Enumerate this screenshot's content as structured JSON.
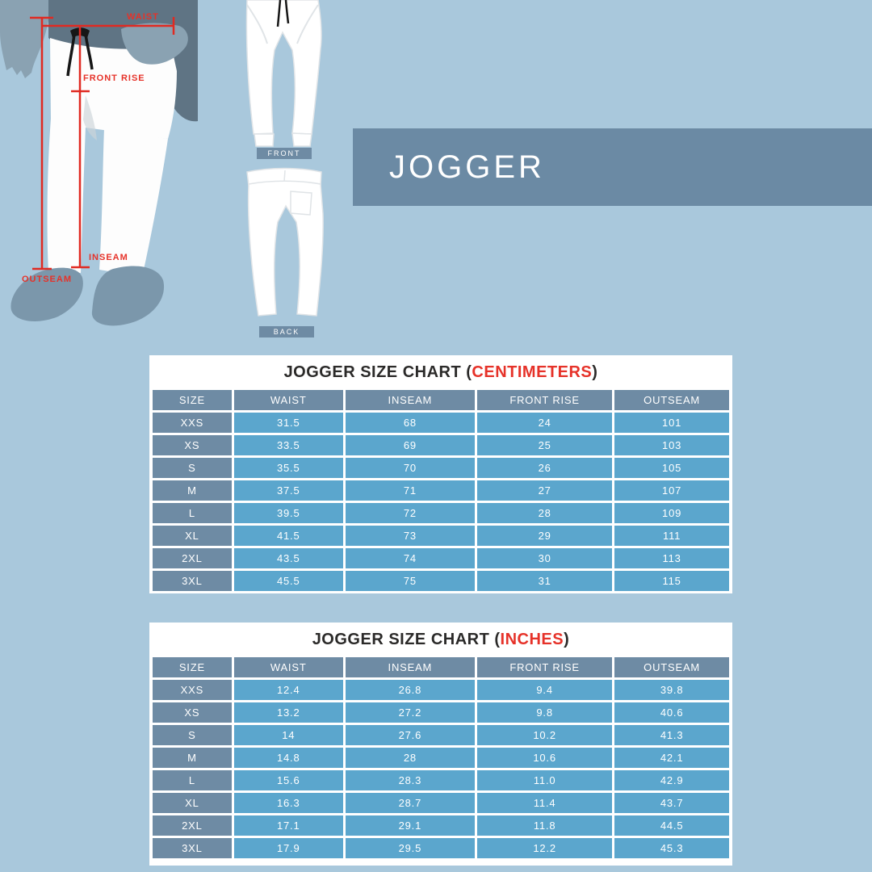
{
  "colors": {
    "background": "#a9c8dc",
    "banner": "#6b8aa4",
    "header_cell": "#6e8ba4",
    "value_cell": "#5ba6cd",
    "accent_red": "#e63229",
    "table_bg": "#ffffff",
    "cell_text": "#ffffff",
    "title_text": "#2b2a29"
  },
  "banner": {
    "title": "JOGGER"
  },
  "diagram": {
    "labels": {
      "waist": "WAIST",
      "front_rise": "FRONT RISE",
      "inseam": "INSEAM",
      "outseam": "OUTSEAM"
    },
    "views": {
      "front": "FRONT",
      "back": "BACK"
    }
  },
  "cm_table": {
    "title_prefix": "JOGGER SIZE CHART (",
    "title_unit": "CENTIMETERS",
    "title_suffix": ")",
    "headers": [
      "SIZE",
      "WAIST",
      "INSEAM",
      "FRONT RISE",
      "OUTSEAM"
    ],
    "rows": [
      [
        "XXS",
        "31.5",
        "68",
        "24",
        "101"
      ],
      [
        "XS",
        "33.5",
        "69",
        "25",
        "103"
      ],
      [
        "S",
        "35.5",
        "70",
        "26",
        "105"
      ],
      [
        "M",
        "37.5",
        "71",
        "27",
        "107"
      ],
      [
        "L",
        "39.5",
        "72",
        "28",
        "109"
      ],
      [
        "XL",
        "41.5",
        "73",
        "29",
        "111"
      ],
      [
        "2XL",
        "43.5",
        "74",
        "30",
        "113"
      ],
      [
        "3XL",
        "45.5",
        "75",
        "31",
        "115"
      ]
    ]
  },
  "inch_table": {
    "title_prefix": "JOGGER SIZE CHART (",
    "title_unit": "INCHES",
    "title_suffix": ")",
    "headers": [
      "SIZE",
      "WAIST",
      "INSEAM",
      "FRONT RISE",
      "OUTSEAM"
    ],
    "rows": [
      [
        "XXS",
        "12.4",
        "26.8",
        "9.4",
        "39.8"
      ],
      [
        "XS",
        "13.2",
        "27.2",
        "9.8",
        "40.6"
      ],
      [
        "S",
        "14",
        "27.6",
        "10.2",
        "41.3"
      ],
      [
        "M",
        "14.8",
        "28",
        "10.6",
        "42.1"
      ],
      [
        "L",
        "15.6",
        "28.3",
        "11.0",
        "42.9"
      ],
      [
        "XL",
        "16.3",
        "28.7",
        "11.4",
        "43.7"
      ],
      [
        "2XL",
        "17.1",
        "29.1",
        "11.8",
        "44.5"
      ],
      [
        "3XL",
        "17.9",
        "29.5",
        "12.2",
        "45.3"
      ]
    ]
  }
}
